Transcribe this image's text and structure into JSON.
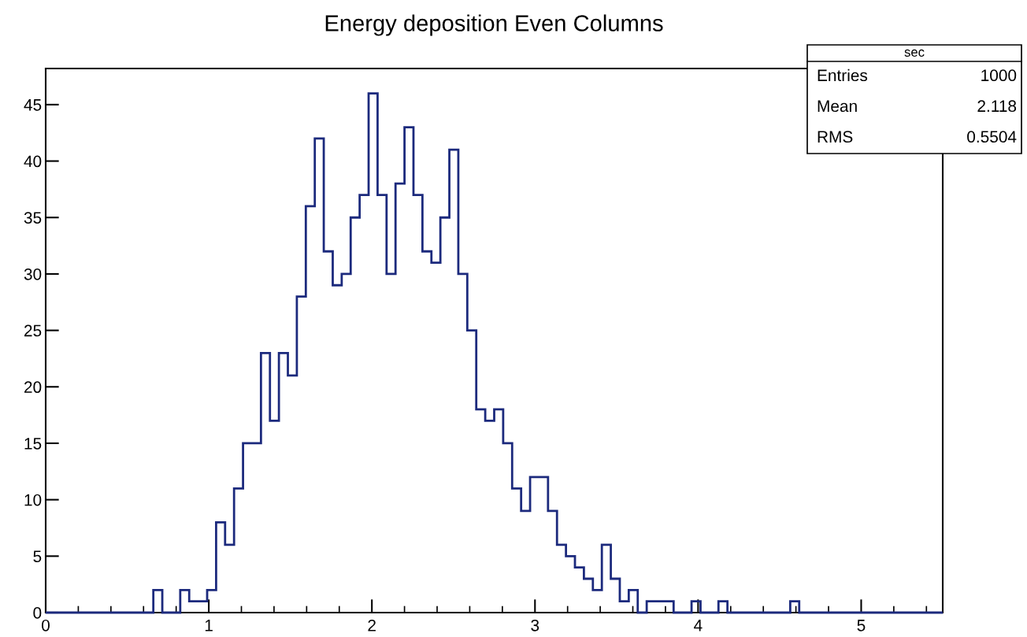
{
  "chart_data": {
    "type": "histogram",
    "title": "Energy deposition Even Columns",
    "bins": [
      0,
      0.055,
      0.11,
      0.165,
      0.22,
      0.275,
      0.33,
      0.385,
      0.44,
      0.495,
      0.55,
      0.605,
      0.66,
      0.715,
      0.77,
      0.825,
      0.88,
      0.935,
      0.99,
      1.045,
      1.1,
      1.155,
      1.21,
      1.265,
      1.32,
      1.375,
      1.43,
      1.485,
      1.54,
      1.595,
      1.65,
      1.705,
      1.76,
      1.815,
      1.87,
      1.925,
      1.98,
      2.035,
      2.09,
      2.145,
      2.2,
      2.255,
      2.31,
      2.365,
      2.42,
      2.475,
      2.53,
      2.585,
      2.64,
      2.695,
      2.75,
      2.805,
      2.86,
      2.915,
      2.97,
      3.025,
      3.08,
      3.135,
      3.19,
      3.245,
      3.3,
      3.355,
      3.41,
      3.465,
      3.52,
      3.575,
      3.63,
      3.685,
      3.74,
      3.795,
      3.85,
      3.905,
      3.96,
      4.015,
      4.07,
      4.125,
      4.18,
      4.235,
      4.29,
      4.345,
      4.4,
      4.455,
      4.51,
      4.565,
      4.62,
      4.675,
      4.73,
      4.785,
      4.84,
      4.895,
      4.95,
      5.005,
      5.06,
      5.115,
      5.17,
      5.225,
      5.28,
      5.335,
      5.39,
      5.445,
      5.5
    ],
    "values": [
      0,
      0,
      0,
      0,
      0,
      0,
      0,
      0,
      0,
      0,
      0,
      0,
      2,
      0,
      0,
      2,
      1,
      1,
      2,
      8,
      6,
      11,
      15,
      15,
      23,
      17,
      23,
      21,
      28,
      36,
      42,
      32,
      29,
      30,
      35,
      37,
      46,
      37,
      30,
      38,
      43,
      37,
      32,
      31,
      35,
      41,
      30,
      25,
      18,
      17,
      18,
      15,
      11,
      9,
      12,
      12,
      9,
      6,
      5,
      4,
      3,
      2,
      6,
      3,
      1,
      2,
      0,
      1,
      1,
      1,
      0,
      0,
      1,
      0,
      0,
      1,
      0,
      0,
      0,
      0,
      0,
      0,
      0,
      1,
      0,
      0,
      0,
      0,
      0,
      0,
      0,
      0,
      0,
      0,
      0,
      0,
      0,
      0,
      0,
      0
    ],
    "color": "#1c2a7d",
    "xlim": [
      0,
      5.5
    ],
    "xticks": [
      0,
      1,
      2,
      3,
      4,
      5
    ],
    "ylim": [
      0,
      48.2
    ],
    "yticks": [
      0,
      5,
      10,
      15,
      20,
      25,
      30,
      35,
      40,
      45
    ],
    "grid": false,
    "annotations": [
      "sec",
      "Entries",
      "1000",
      "Mean",
      "2.118",
      "RMS",
      "0.5504"
    ]
  }
}
